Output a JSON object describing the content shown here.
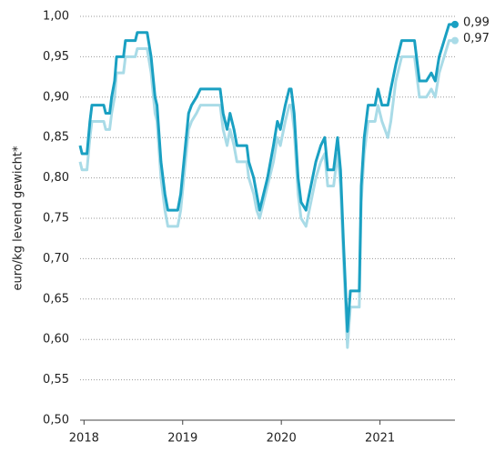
{
  "chart_data": {
    "type": "line",
    "y_label": "euro/kg levend gewicht*",
    "x": [
      2017.96,
      2017.98,
      2018.03,
      2018.06,
      2018.08,
      2018.2,
      2018.22,
      2018.26,
      2018.28,
      2018.31,
      2018.33,
      2018.4,
      2018.42,
      2018.52,
      2018.54,
      2018.64,
      2018.68,
      2018.72,
      2018.74,
      2018.78,
      2018.82,
      2018.85,
      2018.95,
      2018.98,
      2019.02,
      2019.06,
      2019.09,
      2019.14,
      2019.18,
      2019.38,
      2019.41,
      2019.45,
      2019.48,
      2019.52,
      2019.55,
      2019.65,
      2019.67,
      2019.72,
      2019.75,
      2019.78,
      2019.82,
      2019.86,
      2019.92,
      2019.96,
      2019.99,
      2020.04,
      2020.08,
      2020.1,
      2020.13,
      2020.17,
      2020.2,
      2020.25,
      2020.3,
      2020.35,
      2020.4,
      2020.44,
      2020.47,
      2020.53,
      2020.57,
      2020.6,
      2020.63,
      2020.67,
      2020.7,
      2020.79,
      2020.81,
      2020.84,
      2020.88,
      2020.95,
      2020.98,
      2021.02,
      2021.08,
      2021.11,
      2021.16,
      2021.22,
      2021.35,
      2021.4,
      2021.47,
      2021.52,
      2021.56,
      2021.6,
      2021.65,
      2021.7,
      2021.76
    ],
    "series": [
      {
        "color": "#a9dbe7",
        "end_label": "0,97",
        "values": [
          0.82,
          0.81,
          0.81,
          0.85,
          0.87,
          0.87,
          0.86,
          0.86,
          0.88,
          0.9,
          0.93,
          0.93,
          0.95,
          0.95,
          0.96,
          0.96,
          0.93,
          0.88,
          0.87,
          0.8,
          0.76,
          0.74,
          0.74,
          0.76,
          0.81,
          0.86,
          0.87,
          0.88,
          0.89,
          0.89,
          0.86,
          0.84,
          0.86,
          0.84,
          0.82,
          0.82,
          0.8,
          0.78,
          0.76,
          0.75,
          0.77,
          0.79,
          0.82,
          0.85,
          0.84,
          0.87,
          0.89,
          0.89,
          0.86,
          0.78,
          0.75,
          0.74,
          0.77,
          0.8,
          0.82,
          0.83,
          0.79,
          0.79,
          0.83,
          0.79,
          0.7,
          0.59,
          0.64,
          0.64,
          0.77,
          0.83,
          0.87,
          0.87,
          0.89,
          0.87,
          0.85,
          0.87,
          0.92,
          0.95,
          0.95,
          0.9,
          0.9,
          0.91,
          0.9,
          0.93,
          0.95,
          0.97,
          0.97
        ]
      },
      {
        "color": "#1aa0c2",
        "end_label": "0,99",
        "values": [
          0.84,
          0.83,
          0.83,
          0.87,
          0.89,
          0.89,
          0.88,
          0.88,
          0.9,
          0.92,
          0.95,
          0.95,
          0.97,
          0.97,
          0.98,
          0.98,
          0.95,
          0.9,
          0.89,
          0.82,
          0.78,
          0.76,
          0.76,
          0.78,
          0.83,
          0.88,
          0.89,
          0.9,
          0.91,
          0.91,
          0.88,
          0.86,
          0.88,
          0.86,
          0.84,
          0.84,
          0.82,
          0.8,
          0.78,
          0.76,
          0.78,
          0.8,
          0.84,
          0.87,
          0.86,
          0.89,
          0.91,
          0.91,
          0.88,
          0.8,
          0.77,
          0.76,
          0.79,
          0.82,
          0.84,
          0.85,
          0.81,
          0.81,
          0.85,
          0.81,
          0.72,
          0.61,
          0.66,
          0.66,
          0.79,
          0.85,
          0.89,
          0.89,
          0.91,
          0.89,
          0.89,
          0.91,
          0.94,
          0.97,
          0.97,
          0.92,
          0.92,
          0.93,
          0.92,
          0.95,
          0.97,
          0.99,
          0.99
        ]
      }
    ],
    "xlim": [
      2017.96,
      2021.76
    ],
    "xticks": [
      2018,
      2019,
      2020,
      2021
    ],
    "ylim": [
      0.5,
      1.0
    ],
    "yticks": [
      {
        "value": 0.5,
        "label": "0,50"
      },
      {
        "value": 0.55,
        "label": "0,55"
      },
      {
        "value": 0.6,
        "label": "0,60"
      },
      {
        "value": 0.65,
        "label": "0,65"
      },
      {
        "value": 0.7,
        "label": "0,70"
      },
      {
        "value": 0.75,
        "label": "0,75"
      },
      {
        "value": 0.8,
        "label": "0,80"
      },
      {
        "value": 0.85,
        "label": "0,85"
      },
      {
        "value": 0.9,
        "label": "0,90"
      },
      {
        "value": 0.95,
        "label": "0,95"
      },
      {
        "value": 1.0,
        "label": "1,00"
      }
    ],
    "grid": true
  }
}
